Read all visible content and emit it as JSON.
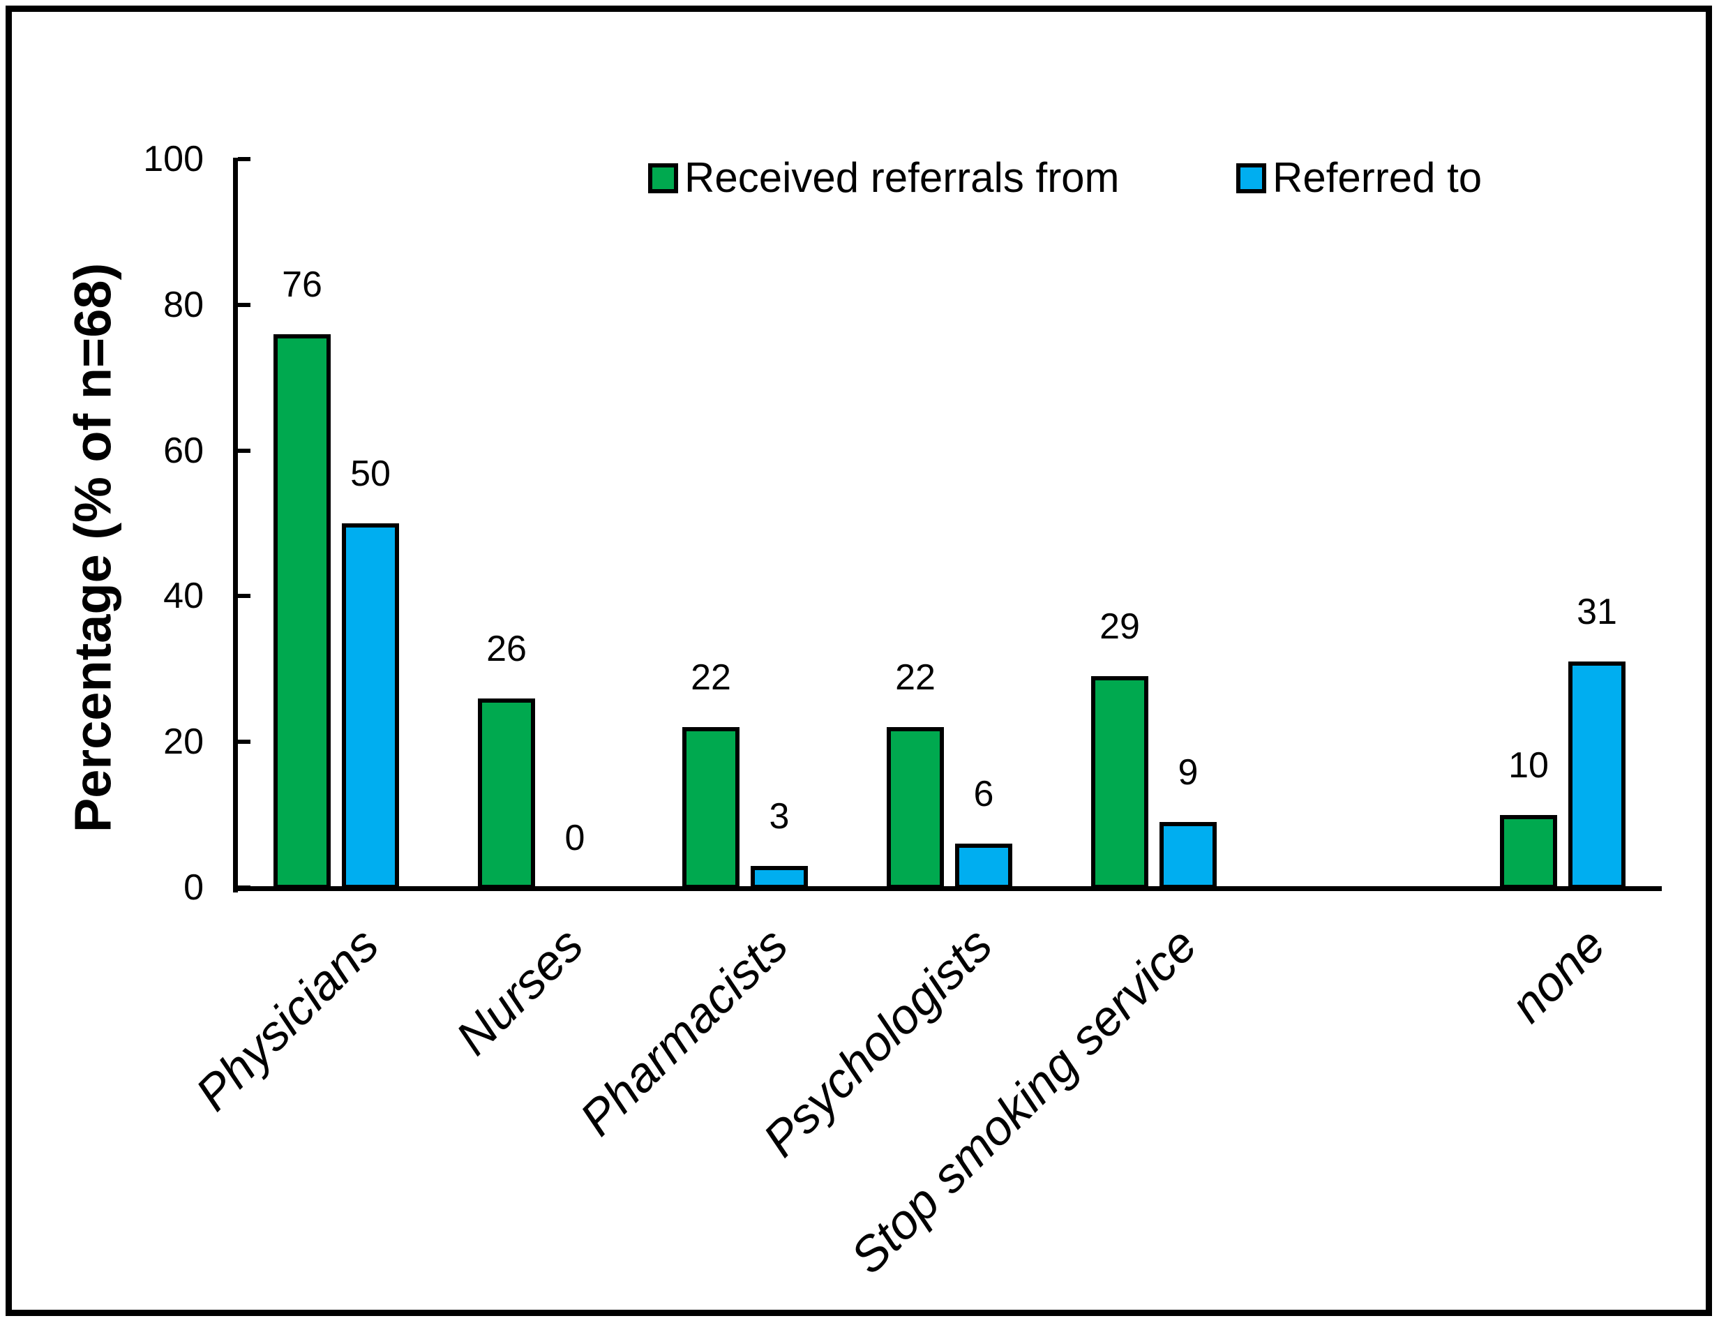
{
  "chart_data": {
    "type": "bar",
    "title": "",
    "ylabel": "Percentage (% of n=68)",
    "xlabel": "",
    "categories": [
      "Physicians",
      "Nurses",
      "Pharmacists",
      "Psychologists",
      "Stop smoking service",
      "none"
    ],
    "series": [
      {
        "name": "Received referrals from",
        "color": "#00A94F",
        "values": [
          76,
          26,
          22,
          22,
          29,
          10
        ]
      },
      {
        "name": "Referred to",
        "color": "#00AEF0",
        "values": [
          50,
          0,
          3,
          6,
          9,
          31
        ]
      }
    ],
    "ylim": [
      0,
      100
    ],
    "yticks": [
      0,
      20,
      40,
      60,
      80,
      100
    ],
    "grid": false,
    "legend_position": "top-center",
    "bar_outline_color": "#000000",
    "data_labels_shown": true
  }
}
